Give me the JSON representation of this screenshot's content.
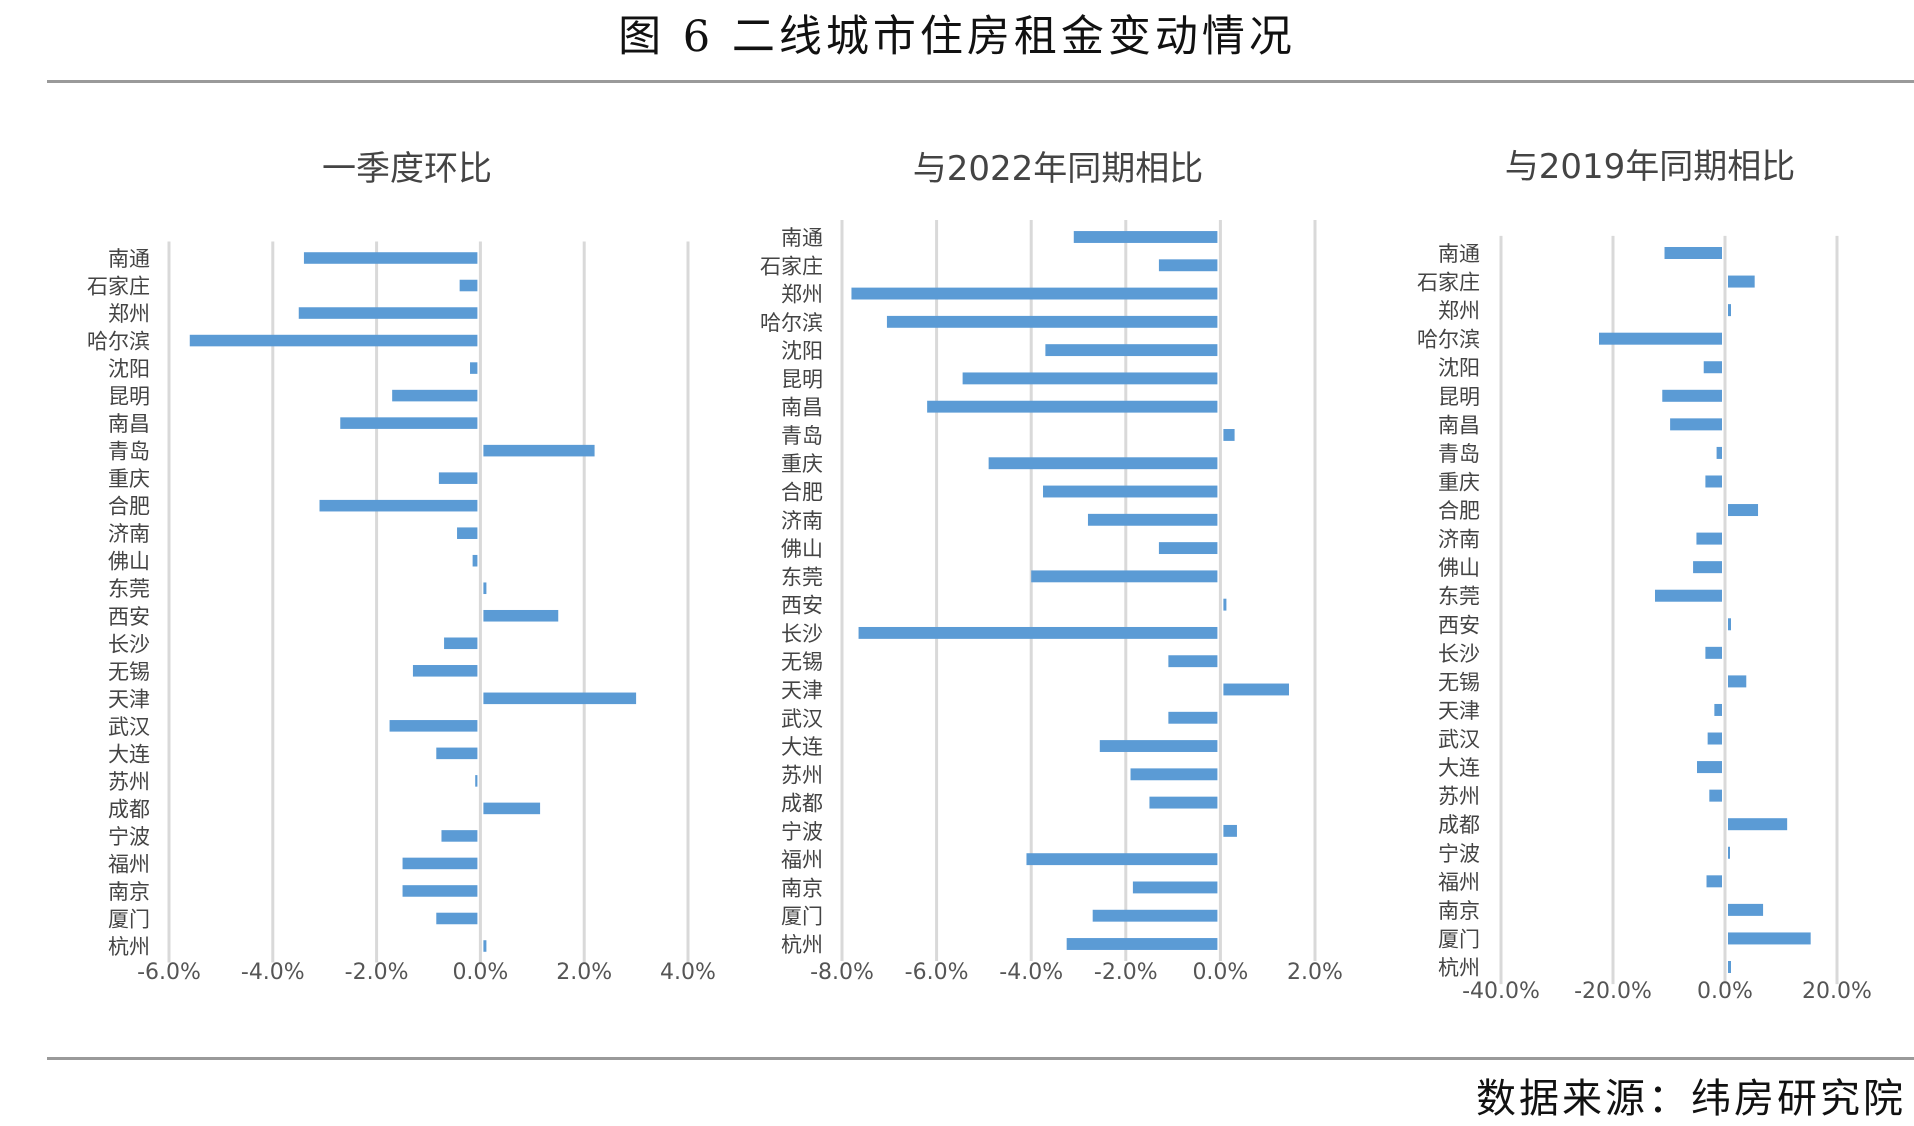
{
  "title": "图 6   二线城市住房租金变动情况",
  "source": "数据来源：纬房研究院",
  "colors": {
    "bar": "#5b9bd5",
    "grid": "#d9d9d9",
    "rule": "#9a9a9a"
  },
  "chart_data": [
    {
      "type": "bar",
      "orientation": "horizontal",
      "title": "一季度环比",
      "categories": [
        "南通",
        "石家庄",
        "郑州",
        "哈尔滨",
        "沈阳",
        "昆明",
        "南昌",
        "青岛",
        "重庆",
        "合肥",
        "济南",
        "佛山",
        "东莞",
        "西安",
        "长沙",
        "无锡",
        "天津",
        "武汉",
        "大连",
        "苏州",
        "成都",
        "宁波",
        "福州",
        "南京",
        "厦门",
        "杭州"
      ],
      "values": [
        -3.4,
        -0.4,
        -3.5,
        -5.6,
        -0.2,
        -1.7,
        -2.7,
        2.2,
        -0.8,
        -3.1,
        -0.45,
        -0.15,
        0,
        1.5,
        -0.7,
        -1.3,
        3.0,
        -1.75,
        -0.85,
        -0.1,
        1.15,
        -0.75,
        -1.5,
        -1.5,
        -0.85,
        0
      ],
      "xlim": [
        -6,
        4
      ],
      "ticks": [
        -6,
        -4,
        -2,
        0,
        2,
        4
      ],
      "tick_labels": [
        "-6.0%",
        "-4.0%",
        "-2.0%",
        "0.0%",
        "2.0%",
        "4.0%"
      ],
      "unit": "%",
      "grid": true
    },
    {
      "type": "bar",
      "orientation": "horizontal",
      "title": "与2022年同期相比",
      "categories": [
        "南通",
        "石家庄",
        "郑州",
        "哈尔滨",
        "沈阳",
        "昆明",
        "南昌",
        "青岛",
        "重庆",
        "合肥",
        "济南",
        "佛山",
        "东莞",
        "西安",
        "长沙",
        "无锡",
        "天津",
        "武汉",
        "大连",
        "苏州",
        "成都",
        "宁波",
        "福州",
        "南京",
        "厦门",
        "杭州"
      ],
      "values": [
        -3.1,
        -1.3,
        -7.8,
        -7.05,
        -3.7,
        -5.45,
        -6.2,
        0.3,
        -4.9,
        -3.75,
        -2.8,
        -1.3,
        -4.0,
        0,
        -7.65,
        -1.1,
        1.45,
        -1.1,
        -2.55,
        -1.9,
        -1.5,
        0.35,
        -4.1,
        -1.85,
        -2.7,
        -3.25
      ],
      "xlim": [
        -8,
        2
      ],
      "ticks": [
        -8,
        -6,
        -4,
        -2,
        0,
        2
      ],
      "tick_labels": [
        "-8.0%",
        "-6.0%",
        "-4.0%",
        "-2.0%",
        "0.0%",
        "2.0%"
      ],
      "unit": "%",
      "grid": true
    },
    {
      "type": "bar",
      "orientation": "horizontal",
      "title": "与2019年同期相比",
      "categories": [
        "南通",
        "石家庄",
        "郑州",
        "哈尔滨",
        "沈阳",
        "昆明",
        "南昌",
        "青岛",
        "重庆",
        "合肥",
        "济南",
        "佛山",
        "东莞",
        "西安",
        "长沙",
        "无锡",
        "天津",
        "武汉",
        "大连",
        "苏州",
        "成都",
        "宁波",
        "福州",
        "南京",
        "厦门",
        "杭州"
      ],
      "values": [
        -10.8,
        5.3,
        0,
        -22.5,
        -3.8,
        -11.2,
        -9.8,
        -1.5,
        -3.5,
        5.9,
        -5.1,
        -5.7,
        -12.5,
        0,
        -3.5,
        3.8,
        -1.9,
        -3.1,
        -5.0,
        -2.8,
        11.1,
        0.4,
        -3.3,
        6.8,
        15.3,
        0
      ],
      "xlim": [
        -40,
        20
      ],
      "ticks": [
        -40,
        -20,
        0,
        20
      ],
      "tick_labels": [
        "-40.0%",
        "-20.0%",
        "0.0%",
        "20.0%"
      ],
      "unit": "%",
      "grid": true
    }
  ]
}
